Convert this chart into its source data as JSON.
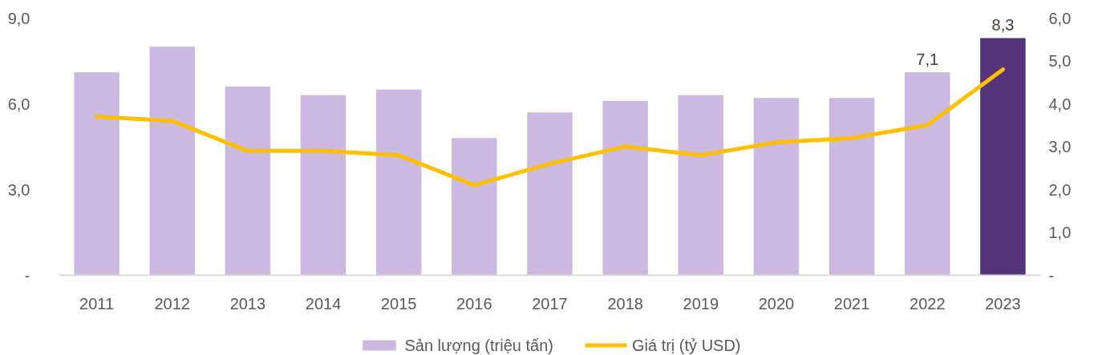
{
  "chart_data": {
    "type": "bar",
    "categories": [
      "2011",
      "2012",
      "2013",
      "2014",
      "2015",
      "2016",
      "2017",
      "2018",
      "2019",
      "2020",
      "2021",
      "2022",
      "2023"
    ],
    "series": [
      {
        "name": "Sản lượng (triệu tấn)",
        "type": "bar",
        "colors": [
          "#cbb9e0",
          "#cbb9e0",
          "#cbb9e0",
          "#cbb9e0",
          "#cbb9e0",
          "#cbb9e0",
          "#cbb9e0",
          "#cbb9e0",
          "#cbb9e0",
          "#cbb9e0",
          "#cbb9e0",
          "#cbb9e0",
          "#55327a"
        ],
        "values": [
          7.1,
          8.0,
          6.6,
          6.3,
          6.5,
          4.8,
          5.7,
          6.1,
          6.3,
          6.2,
          6.2,
          7.1,
          8.3
        ],
        "value_labels": [
          null,
          null,
          null,
          null,
          null,
          null,
          null,
          null,
          null,
          null,
          null,
          "7,1",
          "8,3"
        ]
      },
      {
        "name": "Giá trị (tỷ USD)",
        "type": "line",
        "axis": "y2",
        "color": "#ffc000",
        "values": [
          3.7,
          3.6,
          2.9,
          2.9,
          2.8,
          2.1,
          2.6,
          3.0,
          2.8,
          3.1,
          3.2,
          3.5,
          4.8
        ]
      }
    ],
    "ylim": [
      0,
      9
    ],
    "yticks": [
      {
        "value": 0,
        "label": "-"
      },
      {
        "value": 3,
        "label": "3,0"
      },
      {
        "value": 6,
        "label": "6,0"
      },
      {
        "value": 9,
        "label": "9,0"
      }
    ],
    "y2lim": [
      0,
      6
    ],
    "y2ticks": [
      {
        "value": 0,
        "label": "-"
      },
      {
        "value": 1,
        "label": "1,0"
      },
      {
        "value": 2,
        "label": "2,0"
      },
      {
        "value": 3,
        "label": "3,0"
      },
      {
        "value": 4,
        "label": "4,0"
      },
      {
        "value": 5,
        "label": "5,0"
      },
      {
        "value": 6,
        "label": "6,0"
      }
    ],
    "legend": "bottom"
  }
}
